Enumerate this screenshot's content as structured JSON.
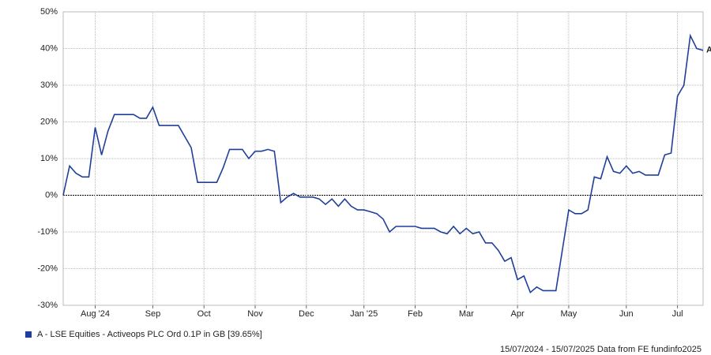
{
  "chart_data": {
    "type": "line",
    "categories": [
      null,
      null,
      null,
      null,
      null,
      "Aug '24",
      null,
      null,
      null,
      null,
      null,
      null,
      null,
      null,
      "Sep",
      null,
      null,
      null,
      null,
      null,
      null,
      null,
      "Oct",
      null,
      null,
      null,
      null,
      null,
      null,
      null,
      "Nov",
      null,
      null,
      null,
      null,
      null,
      null,
      null,
      "Dec",
      null,
      null,
      null,
      null,
      null,
      null,
      null,
      null,
      "Jan '25",
      null,
      null,
      null,
      null,
      null,
      null,
      null,
      "Feb",
      null,
      null,
      null,
      null,
      null,
      null,
      null,
      "Mar",
      null,
      null,
      null,
      null,
      null,
      null,
      null,
      "Apr",
      null,
      null,
      null,
      null,
      null,
      null,
      null,
      "May",
      null,
      null,
      null,
      null,
      null,
      null,
      null,
      null,
      "Jun",
      null,
      null,
      null,
      null,
      null,
      null,
      null,
      "Jul",
      null,
      null,
      null,
      null
    ],
    "series": [
      {
        "name": "A - LSE Equities - Activeops PLC Ord 0.1P in GB [39.65%]",
        "color": "#1f3f9b",
        "end_label": "A",
        "values": [
          0,
          8,
          6,
          5,
          5,
          18.5,
          11,
          17.5,
          22,
          22,
          22,
          22,
          21,
          21,
          24,
          19,
          19,
          19,
          19,
          16,
          13,
          3.5,
          3.5,
          3.5,
          3.5,
          7.5,
          12.5,
          12.5,
          12.5,
          10,
          12,
          12,
          12.5,
          12,
          -2,
          -0.5,
          0.5,
          -0.5,
          -0.5,
          -0.5,
          -1,
          -2.5,
          -1,
          -3,
          -1,
          -3,
          -4,
          -4,
          -4.5,
          -5,
          -6.5,
          -10,
          -8.5,
          -8.5,
          -8.5,
          -8.5,
          -9,
          -9,
          -9,
          -10,
          -10.5,
          -8.5,
          -10.5,
          -9,
          -10.5,
          -10,
          -13,
          -13,
          -15,
          -18,
          -17,
          -23,
          -22,
          -26.5,
          -25,
          -26,
          -26,
          -26,
          -15,
          -4,
          -5,
          -5,
          -4,
          5,
          4.5,
          10.5,
          6.5,
          6,
          8,
          6,
          6.5,
          5.5,
          5.5,
          5.5,
          11,
          11.5,
          27,
          30,
          43.5,
          40,
          39.5
        ]
      }
    ],
    "ylim": [
      -30,
      50
    ],
    "yticks": [
      {
        "value": -30,
        "label": "-30%"
      },
      {
        "value": -20,
        "label": "-20%"
      },
      {
        "value": -10,
        "label": "-10%"
      },
      {
        "value": 0,
        "label": "0%"
      },
      {
        "value": 10,
        "label": "10%"
      },
      {
        "value": 20,
        "label": "20%"
      },
      {
        "value": 30,
        "label": "30%"
      },
      {
        "value": 40,
        "label": "40%"
      },
      {
        "value": 50,
        "label": "50%"
      }
    ],
    "grid": true,
    "footer": "15/07/2024 - 15/07/2025 Data from FE fundinfo2025"
  }
}
